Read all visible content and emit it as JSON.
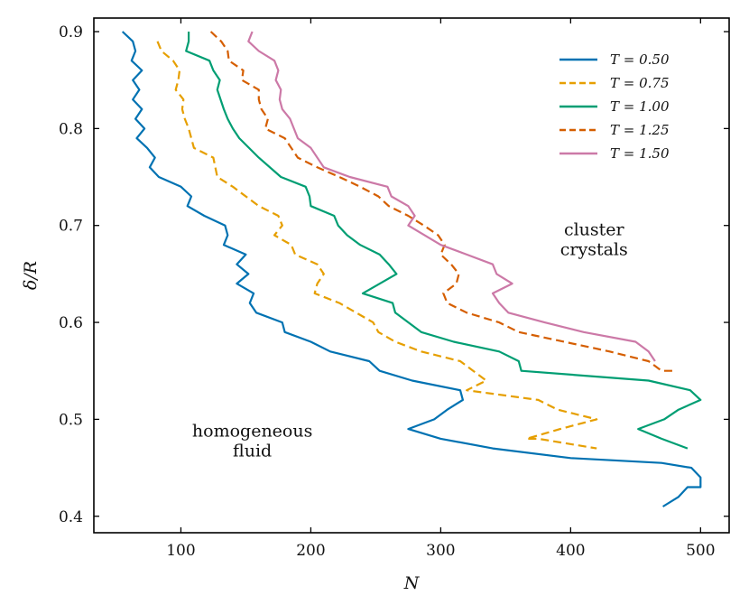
{
  "chart_data": {
    "type": "line",
    "xlabel": "N",
    "ylabel": "δ/R",
    "xlim": [
      33,
      522
    ],
    "ylim": [
      0.383,
      0.914
    ],
    "xticks": [
      100,
      200,
      300,
      400,
      500
    ],
    "yticks": [
      0.4,
      0.5,
      0.6,
      0.7,
      0.8,
      0.9
    ],
    "xtick_labels": [
      "100",
      "200",
      "300",
      "400",
      "500"
    ],
    "ytick_labels": [
      "0.4",
      "0.5",
      "0.6",
      "0.7",
      "0.8",
      "0.9"
    ],
    "grid": false,
    "legend_position": "top-right",
    "annotations": [
      {
        "lines": [
          "cluster",
          "crystals"
        ],
        "x": 418,
        "y": 0.69
      },
      {
        "lines": [
          "homogeneous",
          "fluid"
        ],
        "x": 155,
        "y": 0.482
      }
    ],
    "series": [
      {
        "name": "T = 0.50",
        "color": "#0072B2",
        "dash": "solid",
        "points": [
          [
            55,
            0.9
          ],
          [
            63,
            0.89
          ],
          [
            65,
            0.88
          ],
          [
            62,
            0.87
          ],
          [
            70,
            0.86
          ],
          [
            63,
            0.85
          ],
          [
            68,
            0.84
          ],
          [
            63,
            0.83
          ],
          [
            70,
            0.82
          ],
          [
            65,
            0.81
          ],
          [
            72,
            0.8
          ],
          [
            66,
            0.79
          ],
          [
            74,
            0.78
          ],
          [
            80,
            0.77
          ],
          [
            76,
            0.76
          ],
          [
            83,
            0.75
          ],
          [
            100,
            0.74
          ],
          [
            108,
            0.73
          ],
          [
            105,
            0.72
          ],
          [
            118,
            0.71
          ],
          [
            134,
            0.7
          ],
          [
            136,
            0.69
          ],
          [
            133,
            0.68
          ],
          [
            150,
            0.67
          ],
          [
            143,
            0.66
          ],
          [
            152,
            0.65
          ],
          [
            143,
            0.64
          ],
          [
            156,
            0.63
          ],
          [
            153,
            0.62
          ],
          [
            158,
            0.61
          ],
          [
            178,
            0.6
          ],
          [
            180,
            0.59
          ],
          [
            200,
            0.58
          ],
          [
            215,
            0.57
          ],
          [
            245,
            0.56
          ],
          [
            253,
            0.55
          ],
          [
            278,
            0.54
          ],
          [
            315,
            0.53
          ],
          [
            317,
            0.52
          ],
          [
            305,
            0.51
          ],
          [
            295,
            0.5
          ],
          [
            275,
            0.49
          ],
          [
            300,
            0.48
          ],
          [
            340,
            0.47
          ],
          [
            400,
            0.46
          ],
          [
            470,
            0.455
          ],
          [
            493,
            0.45
          ],
          [
            500,
            0.44
          ],
          [
            500,
            0.43
          ],
          [
            490,
            0.43
          ],
          [
            483,
            0.42
          ],
          [
            471,
            0.41
          ]
        ]
      },
      {
        "name": "T = 0.75",
        "color": "#E69F00",
        "dash": "dashed",
        "points": [
          [
            82,
            0.89
          ],
          [
            85,
            0.88
          ],
          [
            94,
            0.87
          ],
          [
            99,
            0.86
          ],
          [
            98,
            0.85
          ],
          [
            96,
            0.84
          ],
          [
            102,
            0.83
          ],
          [
            101,
            0.82
          ],
          [
            103,
            0.81
          ],
          [
            106,
            0.8
          ],
          [
            110,
            0.78
          ],
          [
            125,
            0.77
          ],
          [
            128,
            0.75
          ],
          [
            140,
            0.74
          ],
          [
            150,
            0.73
          ],
          [
            160,
            0.72
          ],
          [
            175,
            0.71
          ],
          [
            178,
            0.7
          ],
          [
            172,
            0.69
          ],
          [
            185,
            0.68
          ],
          [
            188,
            0.67
          ],
          [
            205,
            0.66
          ],
          [
            210,
            0.65
          ],
          [
            205,
            0.64
          ],
          [
            203,
            0.63
          ],
          [
            222,
            0.62
          ],
          [
            248,
            0.6
          ],
          [
            252,
            0.59
          ],
          [
            265,
            0.58
          ],
          [
            285,
            0.57
          ],
          [
            315,
            0.56
          ],
          [
            325,
            0.55
          ],
          [
            335,
            0.54
          ],
          [
            320,
            0.53
          ],
          [
            375,
            0.52
          ],
          [
            390,
            0.51
          ],
          [
            420,
            0.5
          ],
          [
            392,
            0.49
          ],
          [
            366,
            0.48
          ],
          [
            375,
            0.48
          ],
          [
            420,
            0.47
          ]
        ]
      },
      {
        "name": "T = 1.00",
        "color": "#009E73",
        "dash": "solid",
        "points": [
          [
            106,
            0.9
          ],
          [
            106,
            0.89
          ],
          [
            104,
            0.88
          ],
          [
            122,
            0.87
          ],
          [
            125,
            0.86
          ],
          [
            130,
            0.85
          ],
          [
            128,
            0.84
          ],
          [
            133,
            0.82
          ],
          [
            136,
            0.81
          ],
          [
            140,
            0.8
          ],
          [
            145,
            0.79
          ],
          [
            160,
            0.77
          ],
          [
            177,
            0.75
          ],
          [
            196,
            0.74
          ],
          [
            199,
            0.73
          ],
          [
            200,
            0.72
          ],
          [
            218,
            0.71
          ],
          [
            221,
            0.7
          ],
          [
            228,
            0.69
          ],
          [
            238,
            0.68
          ],
          [
            253,
            0.67
          ],
          [
            260,
            0.66
          ],
          [
            266,
            0.65
          ],
          [
            240,
            0.63
          ],
          [
            263,
            0.62
          ],
          [
            265,
            0.61
          ],
          [
            285,
            0.59
          ],
          [
            310,
            0.58
          ],
          [
            345,
            0.57
          ],
          [
            360,
            0.56
          ],
          [
            362,
            0.55
          ],
          [
            460,
            0.54
          ],
          [
            492,
            0.53
          ],
          [
            500,
            0.52
          ],
          [
            483,
            0.51
          ],
          [
            472,
            0.5
          ],
          [
            452,
            0.49
          ],
          [
            470,
            0.48
          ],
          [
            490,
            0.47
          ]
        ]
      },
      {
        "name": "T = 1.25",
        "color": "#D55E00",
        "dash": "dashed",
        "points": [
          [
            123,
            0.9
          ],
          [
            131,
            0.89
          ],
          [
            136,
            0.88
          ],
          [
            137,
            0.87
          ],
          [
            148,
            0.86
          ],
          [
            147,
            0.85
          ],
          [
            160,
            0.84
          ],
          [
            160,
            0.83
          ],
          [
            162,
            0.82
          ],
          [
            167,
            0.81
          ],
          [
            165,
            0.8
          ],
          [
            180,
            0.79
          ],
          [
            190,
            0.77
          ],
          [
            205,
            0.76
          ],
          [
            222,
            0.75
          ],
          [
            238,
            0.74
          ],
          [
            252,
            0.73
          ],
          [
            260,
            0.72
          ],
          [
            275,
            0.71
          ],
          [
            287,
            0.7
          ],
          [
            298,
            0.69
          ],
          [
            303,
            0.68
          ],
          [
            300,
            0.67
          ],
          [
            308,
            0.66
          ],
          [
            314,
            0.65
          ],
          [
            312,
            0.64
          ],
          [
            302,
            0.63
          ],
          [
            305,
            0.62
          ],
          [
            320,
            0.61
          ],
          [
            345,
            0.6
          ],
          [
            360,
            0.59
          ],
          [
            395,
            0.58
          ],
          [
            430,
            0.57
          ],
          [
            460,
            0.56
          ],
          [
            470,
            0.55
          ],
          [
            480,
            0.55
          ]
        ]
      },
      {
        "name": "T = 1.50",
        "color": "#CC79A7",
        "dash": "solid",
        "points": [
          [
            155,
            0.9
          ],
          [
            152,
            0.89
          ],
          [
            160,
            0.88
          ],
          [
            172,
            0.87
          ],
          [
            175,
            0.86
          ],
          [
            173,
            0.85
          ],
          [
            177,
            0.84
          ],
          [
            176,
            0.83
          ],
          [
            178,
            0.82
          ],
          [
            184,
            0.81
          ],
          [
            190,
            0.79
          ],
          [
            200,
            0.78
          ],
          [
            210,
            0.76
          ],
          [
            230,
            0.75
          ],
          [
            259,
            0.74
          ],
          [
            262,
            0.73
          ],
          [
            275,
            0.72
          ],
          [
            280,
            0.71
          ],
          [
            275,
            0.7
          ],
          [
            300,
            0.68
          ],
          [
            320,
            0.67
          ],
          [
            340,
            0.66
          ],
          [
            343,
            0.65
          ],
          [
            355,
            0.64
          ],
          [
            340,
            0.63
          ],
          [
            345,
            0.62
          ],
          [
            352,
            0.61
          ],
          [
            380,
            0.6
          ],
          [
            410,
            0.59
          ],
          [
            450,
            0.58
          ],
          [
            460,
            0.57
          ],
          [
            465,
            0.56
          ]
        ]
      }
    ]
  }
}
